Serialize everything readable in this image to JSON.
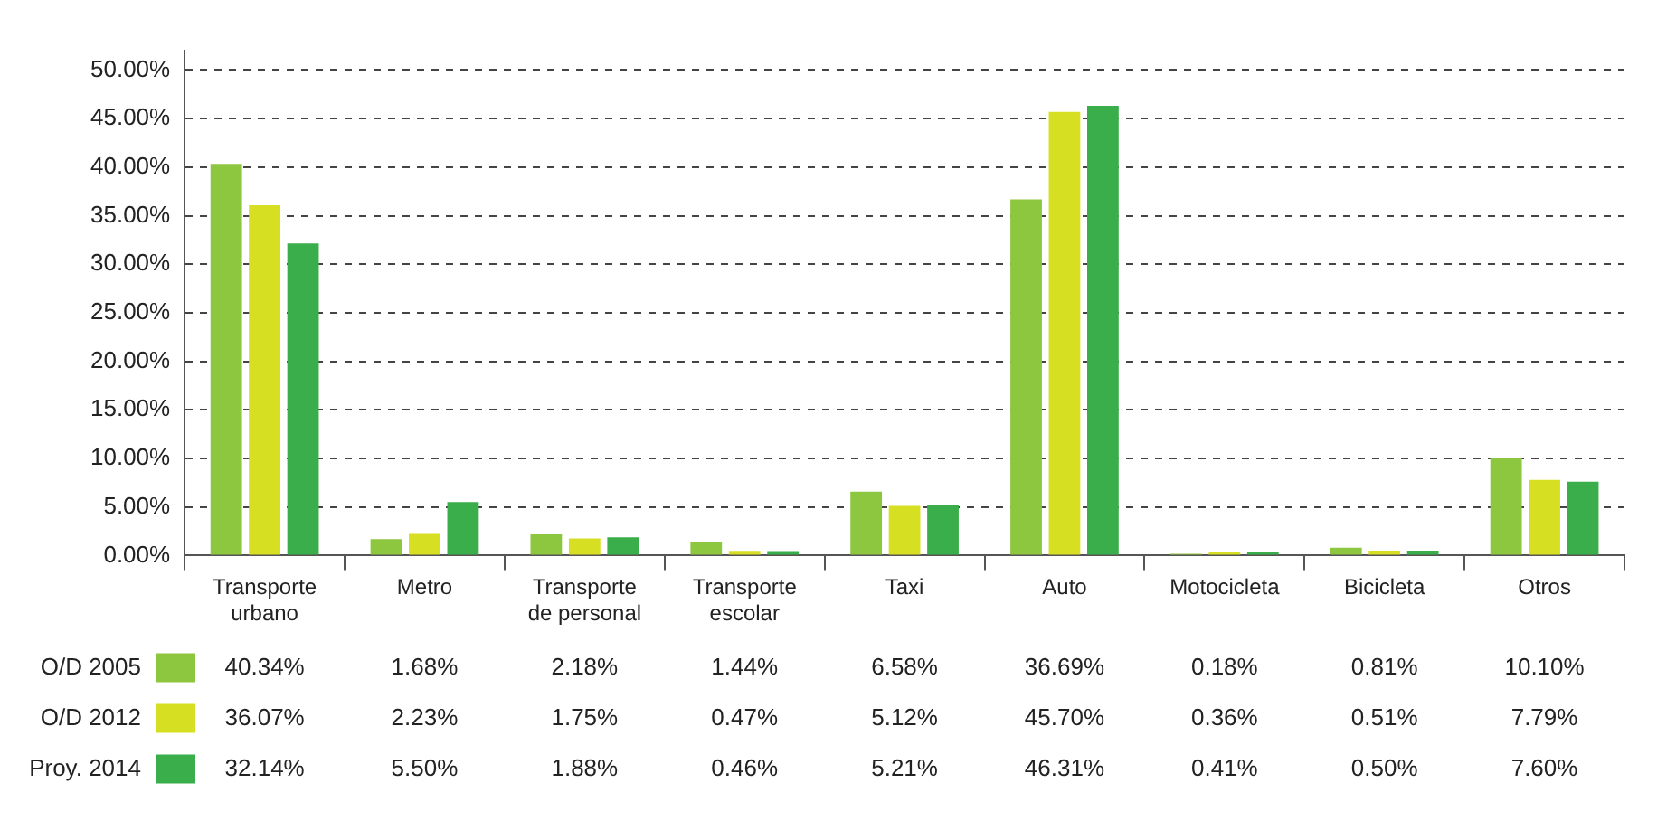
{
  "chart_data": {
    "type": "bar",
    "categories": [
      "Transporte urbano",
      "Metro",
      "Transporte de personal",
      "Transporte escolar",
      "Taxi",
      "Auto",
      "Motocicleta",
      "Bicicleta",
      "Otros"
    ],
    "series": [
      {
        "name": "O/D 2005",
        "color": "#8dc63f",
        "values": [
          40.34,
          1.68,
          2.18,
          1.44,
          6.58,
          36.69,
          0.18,
          0.81,
          10.1
        ],
        "value_labels": [
          "40.34%",
          "1.68%",
          "2.18%",
          "1.44%",
          "6.58%",
          "36.69%",
          "0.18%",
          "0.81%",
          "10.10%"
        ]
      },
      {
        "name": "O/D 2012",
        "color": "#d7df23",
        "values": [
          36.07,
          2.23,
          1.75,
          0.47,
          5.12,
          45.7,
          0.36,
          0.51,
          7.79
        ],
        "value_labels": [
          "36.07%",
          "2.23%",
          "1.75%",
          "0.47%",
          "5.12%",
          "45.70%",
          "0.36%",
          "0.51%",
          "7.79%"
        ]
      },
      {
        "name": "Proy. 2014",
        "color": "#3aae4a",
        "values": [
          32.14,
          5.5,
          1.88,
          0.46,
          5.21,
          46.31,
          0.41,
          0.5,
          7.6
        ],
        "value_labels": [
          "32.14%",
          "5.50%",
          "1.88%",
          "0.46%",
          "5.21%",
          "46.31%",
          "0.41%",
          "0.50%",
          "7.60%"
        ]
      }
    ],
    "ylim": [
      0,
      52
    ],
    "yticks": [
      {
        "value": 0,
        "label": "0.00%"
      },
      {
        "value": 5,
        "label": "5.00%"
      },
      {
        "value": 10,
        "label": "10.00%"
      },
      {
        "value": 15,
        "label": "15.00%"
      },
      {
        "value": 20,
        "label": "20.00%"
      },
      {
        "value": 25,
        "label": "25.00%"
      },
      {
        "value": 30,
        "label": "30.00%"
      },
      {
        "value": 35,
        "label": "35.00%"
      },
      {
        "value": 40,
        "label": "40.00%"
      },
      {
        "value": 45,
        "label": "45.00%"
      },
      {
        "value": 50,
        "label": "50.00%"
      }
    ],
    "grid": "y",
    "legend": "bottom left"
  }
}
